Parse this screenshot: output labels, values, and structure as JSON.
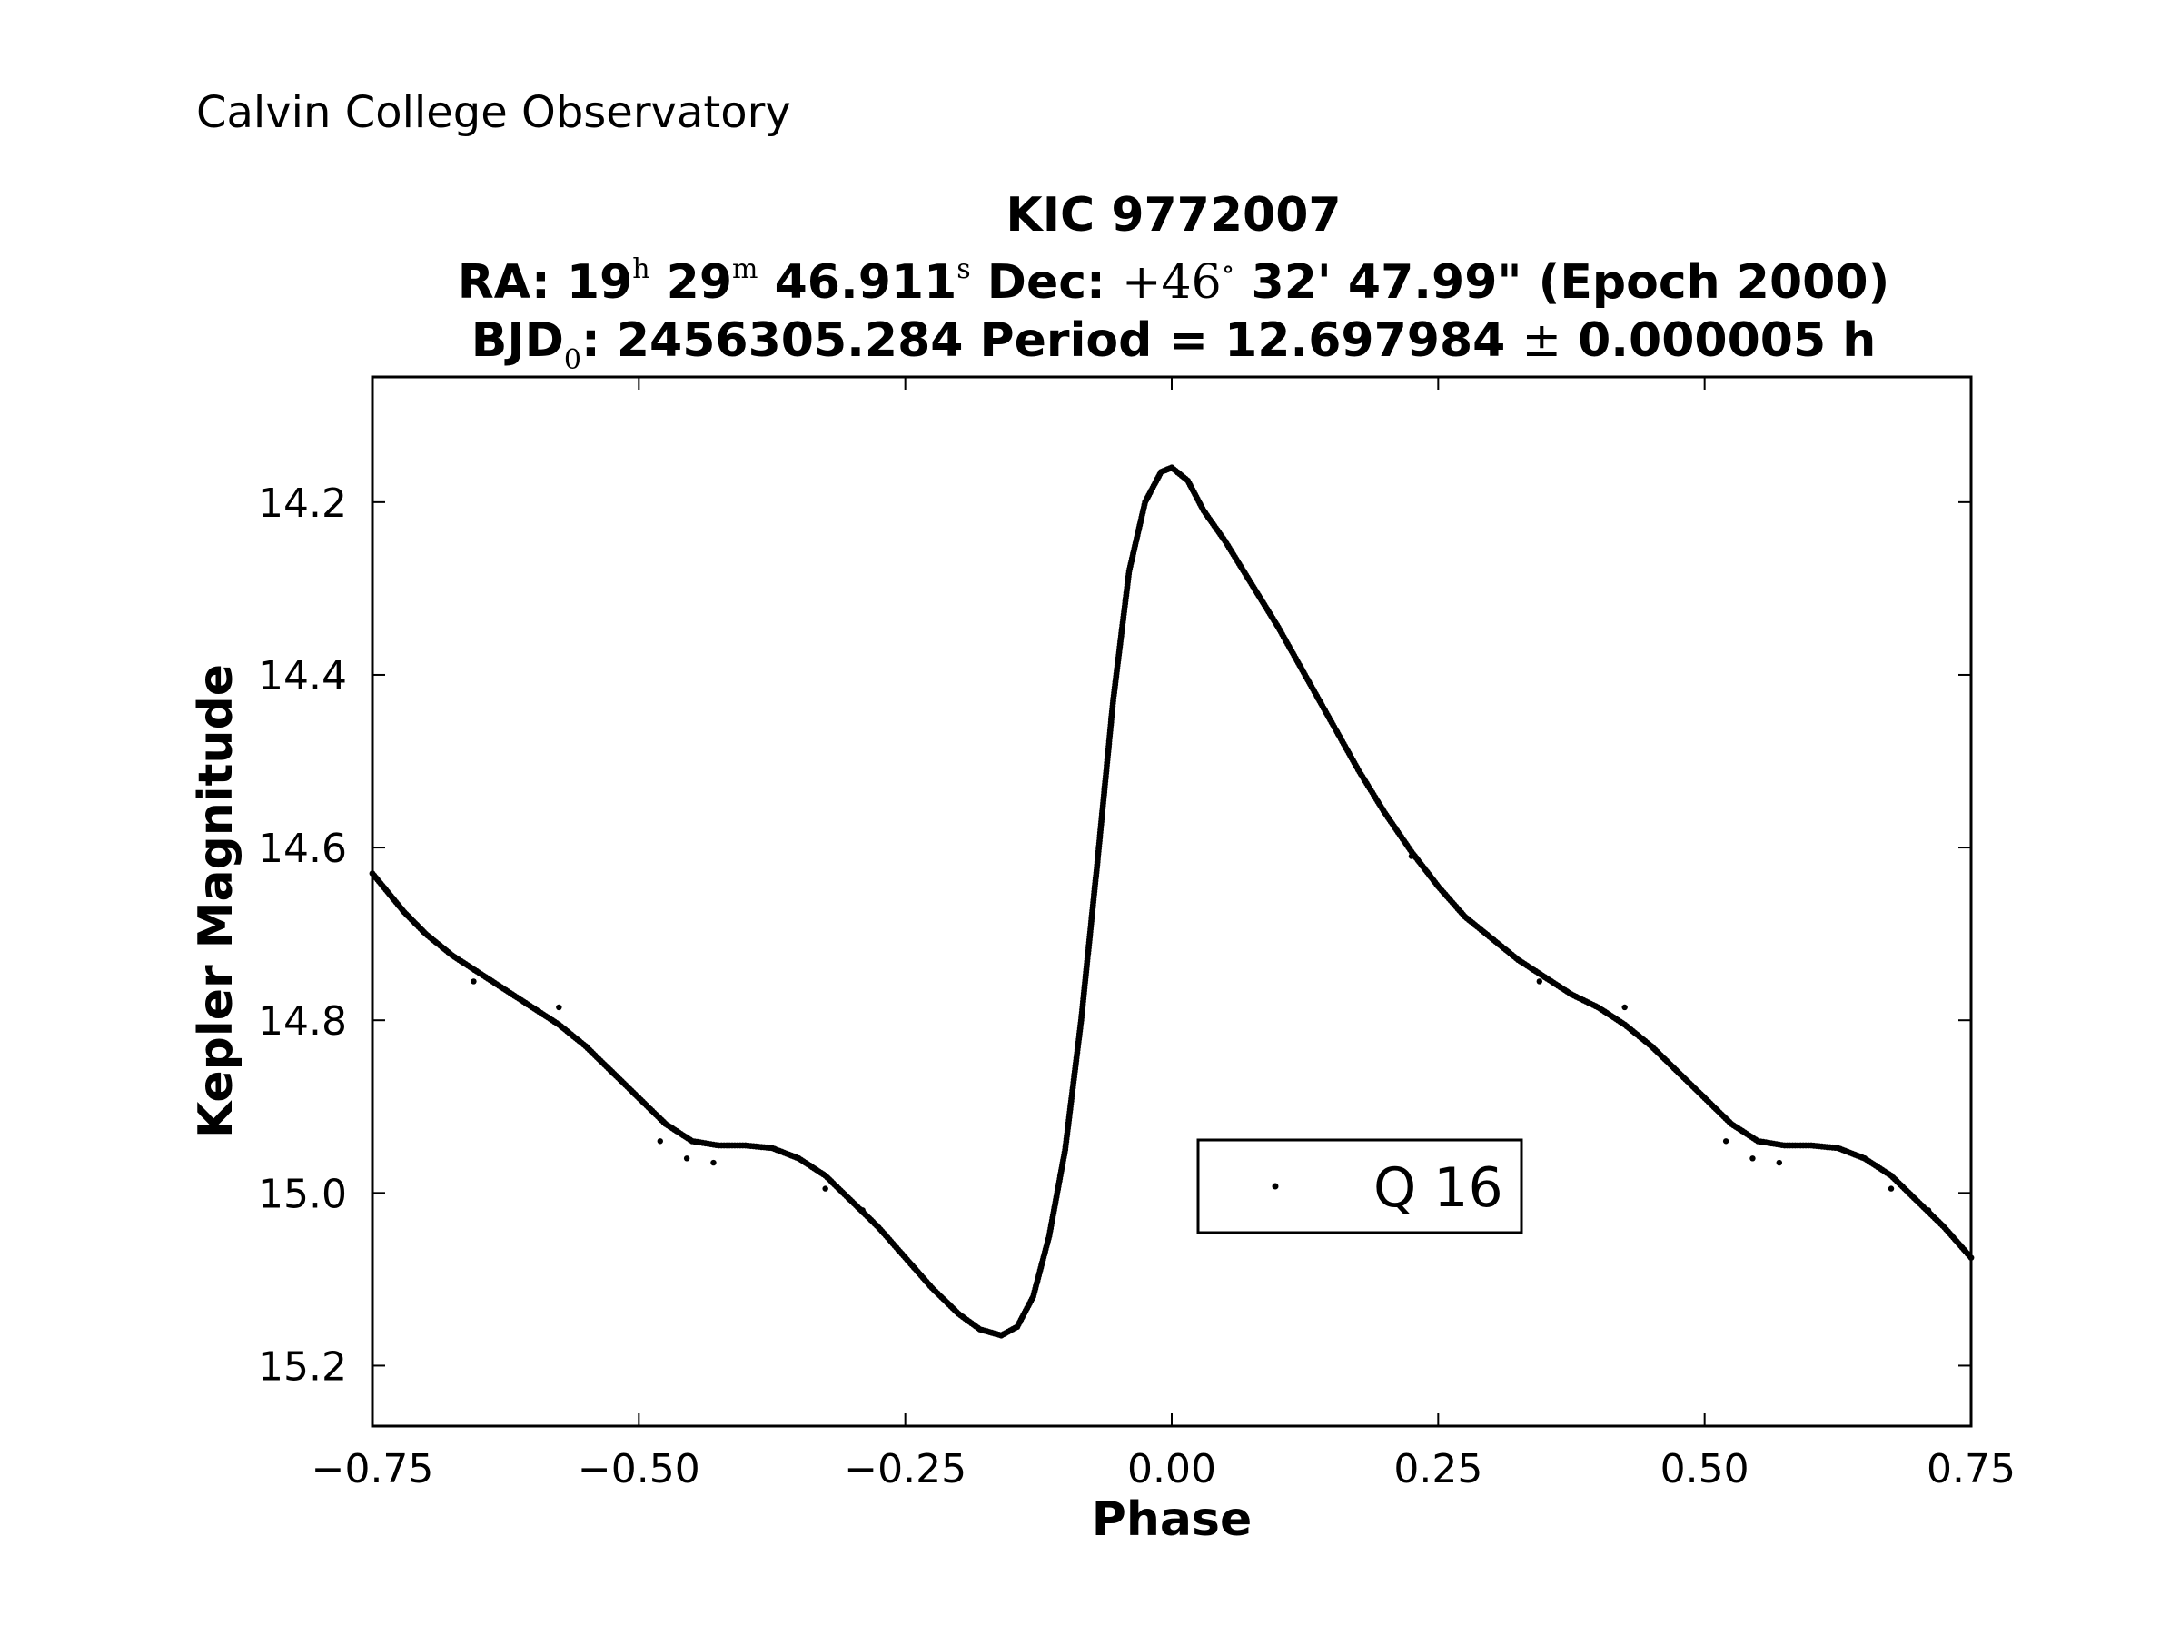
{
  "header": {
    "observatory": "Calvin College Observatory"
  },
  "title": {
    "line1": "KIC 9772007",
    "ra_label": "RA: 19",
    "ra_h": "h",
    "ra_min": "29",
    "ra_m": "m",
    "ra_sec": "46.911",
    "ra_s": "s",
    "dec_label": "Dec:",
    "dec_deg": "+46",
    "deg_sym": "∘",
    "dec_rest": "32' 47.99\" (Epoch 2000)",
    "bjd_label": "BJD",
    "bjd_sub": "0",
    "bjd_value": ": 2456305.284",
    "period_label": "Period = 12.697984",
    "pm": "±",
    "period_err": "0.000005 h"
  },
  "chart_data": {
    "type": "scatter",
    "xlabel": "Phase",
    "ylabel": "Kepler Magnitude",
    "xlim": [
      -0.75,
      0.75
    ],
    "ylim": [
      15.27,
      14.055
    ],
    "y_inverted": true,
    "x_ticks": [
      "−0.75",
      "−0.50",
      "−0.25",
      "0.00",
      "0.25",
      "0.50",
      "0.75"
    ],
    "x_tick_values": [
      -0.75,
      -0.5,
      -0.25,
      0.0,
      0.25,
      0.5,
      0.75
    ],
    "y_ticks": [
      "14.2",
      "14.4",
      "14.6",
      "14.8",
      "15.0",
      "15.2"
    ],
    "y_tick_values": [
      14.2,
      14.4,
      14.6,
      14.8,
      15.0,
      15.2
    ],
    "legend": {
      "label": "Q 16",
      "position": "lower-right"
    },
    "grid": false,
    "marker_color": "#000000",
    "series": [
      {
        "name": "Q 16",
        "curve": [
          [
            -0.75,
            14.63
          ],
          [
            -0.72,
            14.675
          ],
          [
            -0.7,
            14.7
          ],
          [
            -0.675,
            14.725
          ],
          [
            -0.65,
            14.745
          ],
          [
            -0.625,
            14.765
          ],
          [
            -0.6,
            14.785
          ],
          [
            -0.575,
            14.805
          ],
          [
            -0.55,
            14.83
          ],
          [
            -0.525,
            14.86
          ],
          [
            -0.5,
            14.89
          ],
          [
            -0.475,
            14.92
          ],
          [
            -0.45,
            14.94
          ],
          [
            -0.425,
            14.945
          ],
          [
            -0.4,
            14.945
          ],
          [
            -0.375,
            14.948
          ],
          [
            -0.35,
            14.96
          ],
          [
            -0.325,
            14.98
          ],
          [
            -0.3,
            15.01
          ],
          [
            -0.275,
            15.04
          ],
          [
            -0.25,
            15.075
          ],
          [
            -0.225,
            15.11
          ],
          [
            -0.2,
            15.14
          ],
          [
            -0.18,
            15.158
          ],
          [
            -0.16,
            15.165
          ],
          [
            -0.145,
            15.155
          ],
          [
            -0.13,
            15.12
          ],
          [
            -0.115,
            15.05
          ],
          [
            -0.1,
            14.95
          ],
          [
            -0.085,
            14.8
          ],
          [
            -0.07,
            14.62
          ],
          [
            -0.055,
            14.43
          ],
          [
            -0.04,
            14.28
          ],
          [
            -0.025,
            14.2
          ],
          [
            -0.01,
            14.165
          ],
          [
            0.0,
            14.16
          ],
          [
            0.015,
            14.175
          ],
          [
            0.03,
            14.21
          ],
          [
            0.05,
            14.245
          ],
          [
            0.075,
            14.295
          ],
          [
            0.1,
            14.345
          ],
          [
            0.125,
            14.4
          ],
          [
            0.15,
            14.455
          ],
          [
            0.175,
            14.51
          ],
          [
            0.2,
            14.56
          ],
          [
            0.225,
            14.605
          ],
          [
            0.25,
            14.645
          ],
          [
            0.275,
            14.68
          ],
          [
            0.3,
            14.705
          ],
          [
            0.325,
            14.73
          ],
          [
            0.35,
            14.75
          ],
          [
            0.375,
            14.77
          ],
          [
            0.4,
            14.785
          ],
          [
            0.425,
            14.805
          ],
          [
            0.45,
            14.83
          ],
          [
            0.475,
            14.86
          ],
          [
            0.5,
            14.89
          ],
          [
            0.525,
            14.92
          ],
          [
            0.55,
            14.94
          ],
          [
            0.575,
            14.945
          ],
          [
            0.6,
            14.945
          ],
          [
            0.625,
            14.948
          ],
          [
            0.65,
            14.96
          ],
          [
            0.675,
            14.98
          ],
          [
            0.7,
            15.01
          ],
          [
            0.725,
            15.04
          ],
          [
            0.75,
            15.075
          ]
        ],
        "outliers": [
          [
            -0.655,
            14.755
          ],
          [
            -0.575,
            14.785
          ],
          [
            -0.48,
            14.94
          ],
          [
            -0.455,
            14.96
          ],
          [
            -0.43,
            14.965
          ],
          [
            -0.4,
            14.945
          ],
          [
            -0.325,
            14.995
          ],
          [
            -0.29,
            15.02
          ],
          [
            0.225,
            14.61
          ],
          [
            0.345,
            14.755
          ],
          [
            0.425,
            14.785
          ],
          [
            0.52,
            14.94
          ],
          [
            0.545,
            14.96
          ],
          [
            0.57,
            14.965
          ],
          [
            0.675,
            14.995
          ],
          [
            0.71,
            15.02
          ]
        ]
      }
    ]
  }
}
